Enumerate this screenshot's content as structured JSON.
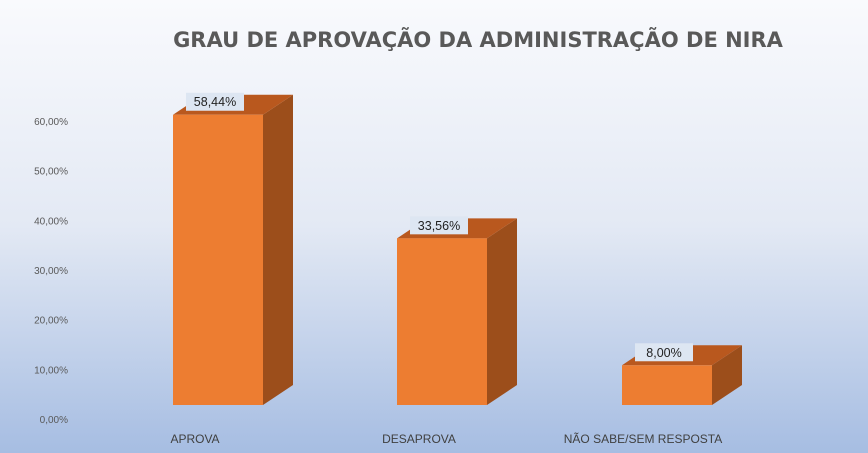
{
  "chart_data": {
    "type": "bar",
    "title": "GRAU DE APROVAÇÃO DA ADMINISTRAÇÃO DE NIRA",
    "categories": [
      "APROVA",
      "DESAPROVA",
      "NÃO SABE/SEM RESPOSTA"
    ],
    "values": [
      58.44,
      33.56,
      8.0
    ],
    "data_labels": [
      "58,44%",
      "33,56%",
      "8,00%"
    ],
    "yticks": [
      "0,00%",
      "10,00%",
      "20,00%",
      "30,00%",
      "40,00%",
      "50,00%",
      "60,00%"
    ],
    "ylim": [
      0,
      60
    ],
    "grid": false,
    "legend": "none",
    "colors": {
      "bar_front": "#ed7d31",
      "bar_side": "#9c4e1b",
      "bar_top": "#b9581e",
      "label_box": "#dde6f2",
      "title": "#595959"
    }
  }
}
